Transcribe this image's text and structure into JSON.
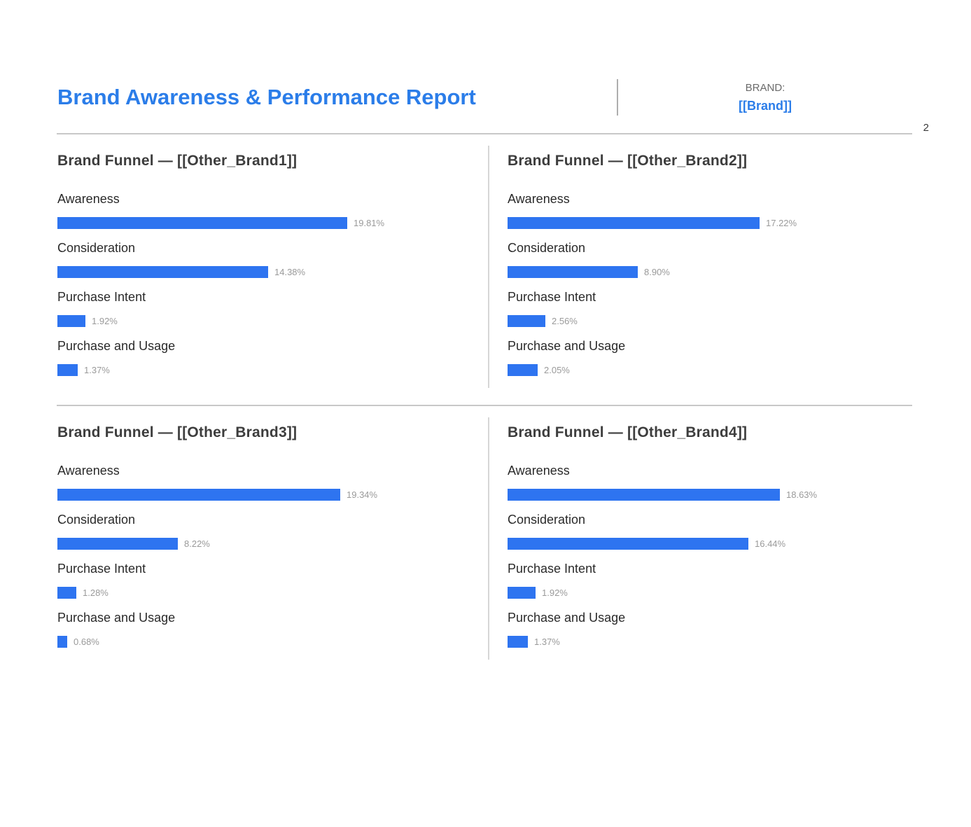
{
  "page": {
    "number": "2"
  },
  "header": {
    "title": "Brand Awareness & Performance Report",
    "brand_label": "BRAND:",
    "brand_value": "[[Brand]]"
  },
  "colors": {
    "accent_blue": "#2b7de9",
    "bar_blue": "#2e74f0",
    "divider_gray": "#c8c8c8",
    "percent_gray": "#9a9a9a"
  },
  "chart_data": [
    {
      "type": "bar",
      "orientation": "horizontal",
      "title": "Brand Funnel — [[Other_Brand1]]",
      "categories": [
        "Awareness",
        "Consideration",
        "Purchase Intent",
        "Purchase and Usage"
      ],
      "values": [
        19.81,
        14.38,
        1.92,
        1.37
      ],
      "labels": [
        "19.81%",
        "14.38%",
        "1.92%",
        "1.37%"
      ],
      "xlim": [
        0,
        20
      ],
      "grid": false,
      "legend": false,
      "bar_color": "#2e74f0"
    },
    {
      "type": "bar",
      "orientation": "horizontal",
      "title": "Brand Funnel — [[Other_Brand2]]",
      "categories": [
        "Awareness",
        "Consideration",
        "Purchase Intent",
        "Purchase and Usage"
      ],
      "values": [
        17.22,
        8.9,
        2.56,
        2.05
      ],
      "labels": [
        "17.22%",
        "8.90%",
        "2.56%",
        "2.05%"
      ],
      "xlim": [
        0,
        20
      ],
      "grid": false,
      "legend": false,
      "bar_color": "#2e74f0"
    },
    {
      "type": "bar",
      "orientation": "horizontal",
      "title": "Brand Funnel — [[Other_Brand3]]",
      "categories": [
        "Awareness",
        "Consideration",
        "Purchase Intent",
        "Purchase and Usage"
      ],
      "values": [
        19.34,
        8.22,
        1.28,
        0.68
      ],
      "labels": [
        "19.34%",
        "8.22%",
        "1.28%",
        "0.68%"
      ],
      "xlim": [
        0,
        20
      ],
      "grid": false,
      "legend": false,
      "bar_color": "#2e74f0"
    },
    {
      "type": "bar",
      "orientation": "horizontal",
      "title": "Brand Funnel — [[Other_Brand4]]",
      "categories": [
        "Awareness",
        "Consideration",
        "Purchase Intent",
        "Purchase and Usage"
      ],
      "values": [
        18.63,
        16.44,
        1.92,
        1.37
      ],
      "labels": [
        "18.63%",
        "16.44%",
        "1.92%",
        "1.37%"
      ],
      "xlim": [
        0,
        20
      ],
      "grid": false,
      "legend": false,
      "bar_color": "#2e74f0"
    }
  ]
}
